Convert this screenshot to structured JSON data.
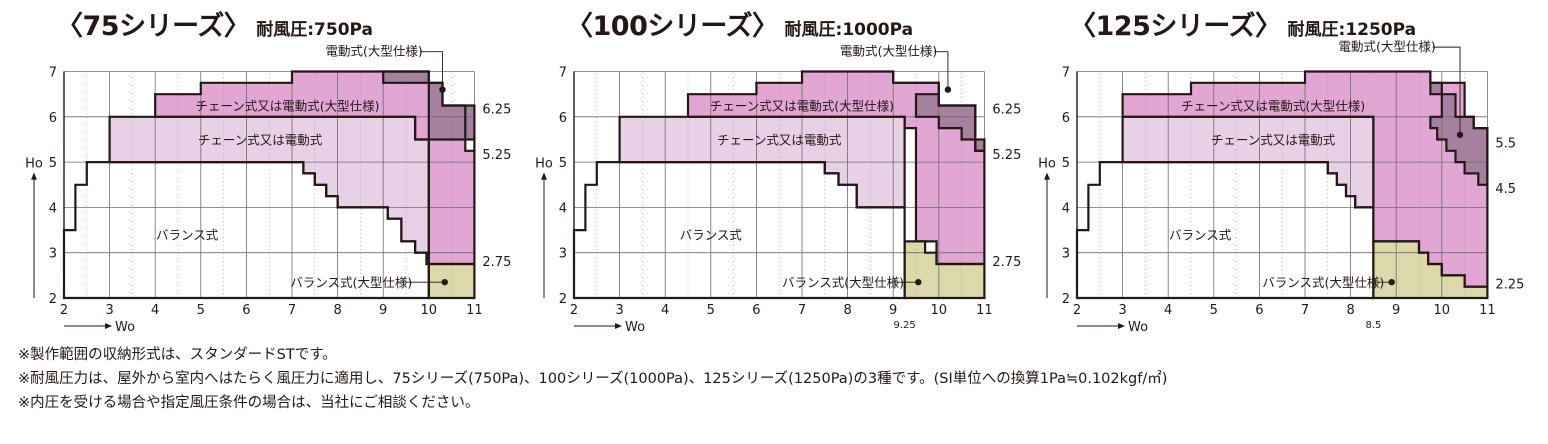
{
  "colors": {
    "balance": "#ffffff",
    "balance_large": "#dcd8a9",
    "chain_or_electric": "#e8d0e6",
    "chain_or_electric_large": "#e1a6d3",
    "electric_large": "#a5809f",
    "grid": "#6e6e6e",
    "outline": "#231815"
  },
  "chart_data": [
    {
      "type": "area",
      "title": "〈75シリーズ〉",
      "subtitle": "耐風圧:750Pa",
      "xlabel": "Wo",
      "ylabel": "Ho",
      "xlim": [
        2,
        11
      ],
      "ylim": [
        2,
        7
      ],
      "x_ticks": [
        "2",
        "3",
        "4",
        "5",
        "6",
        "7",
        "8",
        "9",
        "10",
        "11"
      ],
      "y_ticks": [
        "2",
        "3",
        "4",
        "5",
        "6",
        "7"
      ],
      "grid": true,
      "region_labels": [
        "チェーン式又は電動式(大型仕様)",
        "チェーン式又は電動式",
        "バランス式"
      ],
      "callouts": [
        "電動式(大型仕様)",
        "バランス式(大型仕様)"
      ],
      "right_values": [
        "6.25",
        "5.25",
        "2.75"
      ],
      "regions": [
        {
          "name": "チェーン式又は電動式(大型仕様)",
          "color": "chain_or_electric_large",
          "points": [
            [
              4,
              6.5
            ],
            [
              4,
              6
            ],
            [
              9.7,
              6
            ],
            [
              9.7,
              5.5
            ],
            [
              10,
              5.5
            ],
            [
              10,
              2.75
            ],
            [
              11,
              2.75
            ],
            [
              11,
              5.25
            ],
            [
              10.8,
              5.25
            ],
            [
              10.8,
              6.25
            ],
            [
              10.3,
              6.25
            ],
            [
              10.3,
              6.75
            ],
            [
              10,
              6.75
            ],
            [
              10,
              7
            ],
            [
              7,
              7
            ],
            [
              7,
              6.75
            ],
            [
              5,
              6.75
            ],
            [
              5,
              6.5
            ]
          ]
        },
        {
          "name": "チェーン式又は電動式",
          "color": "chain_or_electric",
          "points": [
            [
              3,
              6
            ],
            [
              9.7,
              6
            ],
            [
              9.7,
              5.5
            ],
            [
              10,
              5.5
            ],
            [
              10,
              2.75
            ],
            [
              9.95,
              2.75
            ],
            [
              9.95,
              3
            ],
            [
              9.7,
              3
            ],
            [
              9.7,
              3.25
            ],
            [
              9.4,
              3.25
            ],
            [
              9.4,
              3.75
            ],
            [
              9.1,
              3.75
            ],
            [
              9.1,
              4
            ],
            [
              8,
              4
            ],
            [
              8,
              4.25
            ],
            [
              7.75,
              4.25
            ],
            [
              7.75,
              4.5
            ],
            [
              7.5,
              4.5
            ],
            [
              7.5,
              4.75
            ],
            [
              7.25,
              4.75
            ],
            [
              7.25,
              5
            ],
            [
              3,
              5
            ]
          ]
        },
        {
          "name": "バランス式",
          "color": "balance",
          "points": [
            [
              2,
              2
            ],
            [
              2,
              3.5
            ],
            [
              2.25,
              3.5
            ],
            [
              2.25,
              4.5
            ],
            [
              2.5,
              4.5
            ],
            [
              2.5,
              5
            ],
            [
              7.25,
              5
            ],
            [
              7.25,
              4.75
            ],
            [
              7.5,
              4.75
            ],
            [
              7.5,
              4.5
            ],
            [
              7.75,
              4.5
            ],
            [
              7.75,
              4.25
            ],
            [
              8,
              4.25
            ],
            [
              8,
              4
            ],
            [
              9.1,
              4
            ],
            [
              9.1,
              3.75
            ],
            [
              9.4,
              3.75
            ],
            [
              9.4,
              3.25
            ],
            [
              9.7,
              3.25
            ],
            [
              9.7,
              3
            ],
            [
              9.95,
              3
            ],
            [
              9.95,
              2.75
            ],
            [
              10,
              2.75
            ],
            [
              10,
              2
            ]
          ]
        },
        {
          "name": "バランス式(大型仕様)",
          "color": "balance_large",
          "points": [
            [
              10,
              2
            ],
            [
              10,
              2.75
            ],
            [
              11,
              2.75
            ],
            [
              11,
              2
            ]
          ]
        },
        {
          "name": "電動式(大型仕様)",
          "color": "electric_large",
          "points": [
            [
              9,
              7
            ],
            [
              9,
              6.75
            ],
            [
              10,
              6.75
            ],
            [
              10,
              5.5
            ],
            [
              11,
              5.5
            ],
            [
              11,
              5.25
            ],
            [
              11,
              6.25
            ],
            [
              10.8,
              6.25
            ],
            [
              10.3,
              6.25
            ],
            [
              10.3,
              6.75
            ],
            [
              10,
              6.75
            ],
            [
              10,
              7
            ]
          ]
        }
      ]
    },
    {
      "type": "area",
      "title": "〈100シリーズ〉",
      "subtitle": "耐風圧:1000Pa",
      "xlabel": "Wo",
      "ylabel": "Ho",
      "xlim": [
        2,
        11
      ],
      "ylim": [
        2,
        7
      ],
      "x_ticks": [
        "2",
        "3",
        "4",
        "5",
        "6",
        "7",
        "8",
        "9",
        "10",
        "11"
      ],
      "extra_x_ticks": [
        "9.25"
      ],
      "y_ticks": [
        "2",
        "3",
        "4",
        "5",
        "6",
        "7"
      ],
      "grid": true,
      "region_labels": [
        "チェーン式又は電動式(大型仕様)",
        "チェーン式又は電動式",
        "バランス式"
      ],
      "callouts": [
        "電動式(大型仕様)",
        "バランス式(大型仕様)"
      ],
      "right_values": [
        "6.25",
        "5.25",
        "2.75"
      ]
    },
    {
      "type": "area",
      "title": "〈125シリーズ〉",
      "subtitle": "耐風圧:1250Pa",
      "xlabel": "Wo",
      "ylabel": "Ho",
      "xlim": [
        2,
        11
      ],
      "ylim": [
        2,
        7
      ],
      "x_ticks": [
        "2",
        "3",
        "4",
        "5",
        "6",
        "7",
        "8",
        "9",
        "10",
        "11"
      ],
      "extra_x_ticks": [
        "8.5"
      ],
      "y_ticks": [
        "2",
        "3",
        "4",
        "5",
        "6",
        "7"
      ],
      "grid": true,
      "region_labels": [
        "チェーン式又は電動式(大型仕様)",
        "チェーン式又は電動式",
        "バランス式"
      ],
      "callouts": [
        "電動式(大型仕様)",
        "バランス式(大型仕様)"
      ],
      "right_values": [
        "5.5",
        "4.5",
        "2.25"
      ]
    }
  ],
  "notes": [
    "※製作範囲の収納形式は、スタンダードSTです。",
    "※耐風圧力は、屋外から室内へはたらく風圧力に適用し、75シリーズ(750Pa)、100シリーズ(1000Pa)、125シリーズ(1250Pa)の3種です。(SI単位への換算1Pa≒0.102kgf/㎡)",
    "※内圧を受ける場合や指定風圧条件の場合は、当社にご相談ください。"
  ]
}
